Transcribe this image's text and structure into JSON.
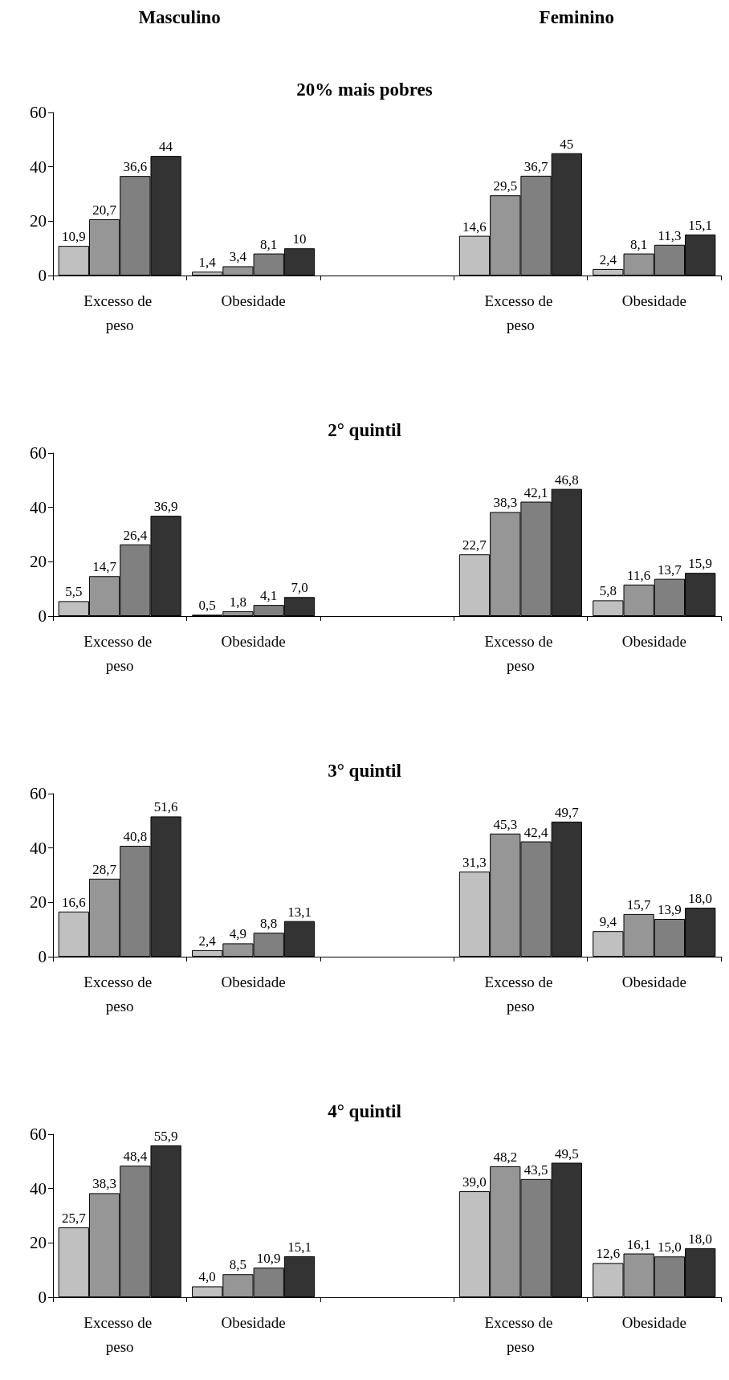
{
  "chart_data": [
    {
      "type": "bar",
      "title": "20% mais pobres",
      "annotations": [
        "Masculino",
        "Feminino"
      ],
      "categories": [
        "Excesso de peso",
        "Obesidade",
        null,
        "Excesso de peso",
        "Obesidade"
      ],
      "ylim": [
        0,
        60
      ],
      "yticks": [
        0,
        20,
        40,
        60
      ],
      "series": [
        {
          "color": "#c0c0c0",
          "values": [
            10.9,
            1.4,
            null,
            14.6,
            2.4
          ],
          "value_labels": [
            "10,9",
            "1,4",
            null,
            "14,6",
            "2,4"
          ]
        },
        {
          "color": "#969696",
          "values": [
            20.7,
            3.4,
            null,
            29.5,
            8.1
          ],
          "value_labels": [
            "20,7",
            "3,4",
            null,
            "29,5",
            "8,1"
          ]
        },
        {
          "color": "#808080",
          "values": [
            36.6,
            8.1,
            null,
            36.7,
            11.3
          ],
          "value_labels": [
            "36,6",
            "8,1",
            null,
            "36,7",
            "11,3"
          ]
        },
        {
          "color": "#333333",
          "values": [
            44,
            10,
            null,
            45,
            15.1
          ],
          "value_labels": [
            "44",
            "10",
            null,
            "45",
            "15,1"
          ]
        }
      ]
    },
    {
      "type": "bar",
      "title": "2° quintil",
      "categories": [
        "Excesso de peso",
        "Obesidade",
        null,
        "Excesso de peso",
        "Obesidade"
      ],
      "ylim": [
        0,
        60
      ],
      "yticks": [
        0,
        20,
        40,
        60
      ],
      "series": [
        {
          "color": "#c0c0c0",
          "values": [
            5.5,
            0.5,
            null,
            22.7,
            5.8
          ],
          "value_labels": [
            "5,5",
            "0,5",
            null,
            "22,7",
            "5,8"
          ]
        },
        {
          "color": "#969696",
          "values": [
            14.7,
            1.8,
            null,
            38.3,
            11.6
          ],
          "value_labels": [
            "14,7",
            "1,8",
            null,
            "38,3",
            "11,6"
          ]
        },
        {
          "color": "#808080",
          "values": [
            26.4,
            4.1,
            null,
            42.1,
            13.7
          ],
          "value_labels": [
            "26,4",
            "4,1",
            null,
            "42,1",
            "13,7"
          ]
        },
        {
          "color": "#333333",
          "values": [
            36.9,
            7.0,
            null,
            46.8,
            15.9
          ],
          "value_labels": [
            "36,9",
            "7,0",
            null,
            "46,8",
            "15,9"
          ]
        }
      ]
    },
    {
      "type": "bar",
      "title": "3° quintil",
      "categories": [
        "Excesso de peso",
        "Obesidade",
        null,
        "Excesso de peso",
        "Obesidade"
      ],
      "ylim": [
        0,
        60
      ],
      "yticks": [
        0,
        20,
        40,
        60
      ],
      "series": [
        {
          "color": "#c0c0c0",
          "values": [
            16.6,
            2.4,
            null,
            31.3,
            9.4
          ],
          "value_labels": [
            "16,6",
            "2,4",
            null,
            "31,3",
            "9,4"
          ]
        },
        {
          "color": "#969696",
          "values": [
            28.7,
            4.9,
            null,
            45.3,
            15.7
          ],
          "value_labels": [
            "28,7",
            "4,9",
            null,
            "45,3",
            "15,7"
          ]
        },
        {
          "color": "#808080",
          "values": [
            40.8,
            8.8,
            null,
            42.4,
            13.9
          ],
          "value_labels": [
            "40,8",
            "8,8",
            null,
            "42,4",
            "13,9"
          ]
        },
        {
          "color": "#333333",
          "values": [
            51.6,
            13.1,
            null,
            49.7,
            18.0
          ],
          "value_labels": [
            "51,6",
            "13,1",
            null,
            "49,7",
            "18,0"
          ]
        }
      ]
    },
    {
      "type": "bar",
      "title": "4° quintil",
      "categories": [
        "Excesso de peso",
        "Obesidade",
        null,
        "Excesso de peso",
        "Obesidade"
      ],
      "ylim": [
        0,
        60
      ],
      "yticks": [
        0,
        20,
        40,
        60
      ],
      "series": [
        {
          "color": "#c0c0c0",
          "values": [
            25.7,
            4.0,
            null,
            39.0,
            12.6
          ],
          "value_labels": [
            "25,7",
            "4,0",
            null,
            "39,0",
            "12,6"
          ]
        },
        {
          "color": "#969696",
          "values": [
            38.3,
            8.5,
            null,
            48.2,
            16.1
          ],
          "value_labels": [
            "38,3",
            "8,5",
            null,
            "48,2",
            "16,1"
          ]
        },
        {
          "color": "#808080",
          "values": [
            48.4,
            10.9,
            null,
            43.5,
            15.0
          ],
          "value_labels": [
            "48,4",
            "10,9",
            null,
            "43,5",
            "15,0"
          ]
        },
        {
          "color": "#333333",
          "values": [
            55.9,
            15.1,
            null,
            49.5,
            18.0
          ],
          "value_labels": [
            "55,9",
            "15,1",
            null,
            "49,5",
            "18,0"
          ]
        }
      ]
    }
  ]
}
